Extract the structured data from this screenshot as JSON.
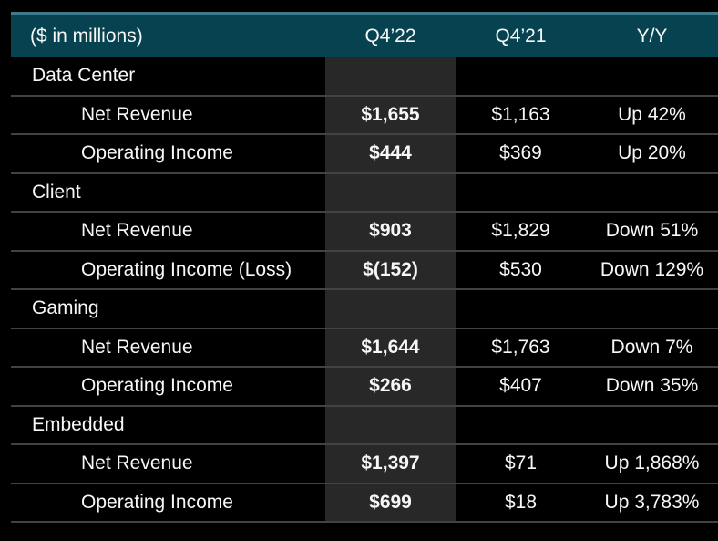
{
  "slide": {
    "header": {
      "unit_label": "($ in millions)",
      "columns": [
        "Q4’22",
        "Q4’21",
        "Y/Y"
      ]
    },
    "rows": [
      {
        "kind": "section",
        "label": "Data Center"
      },
      {
        "kind": "item",
        "label": "Net Revenue",
        "c1": "$1,655",
        "c2": "$1,163",
        "c3": "Up 42%"
      },
      {
        "kind": "item",
        "label": "Operating Income",
        "c1": "$444",
        "c2": "$369",
        "c3": "Up 20%"
      },
      {
        "kind": "section",
        "label": "Client"
      },
      {
        "kind": "item",
        "label": "Net Revenue",
        "c1": "$903",
        "c2": "$1,829",
        "c3": "Down 51%"
      },
      {
        "kind": "item",
        "label": "Operating Income (Loss)",
        "c1": "$(152)",
        "c2": "$530",
        "c3": "Down 129%"
      },
      {
        "kind": "section",
        "label": "Gaming"
      },
      {
        "kind": "item",
        "label": "Net Revenue",
        "c1": "$1,644",
        "c2": "$1,763",
        "c3": "Down 7%"
      },
      {
        "kind": "item",
        "label": "Operating Income",
        "c1": "$266",
        "c2": "$407",
        "c3": "Down 35%"
      },
      {
        "kind": "section",
        "label": "Embedded"
      },
      {
        "kind": "item",
        "label": "Net Revenue",
        "c1": "$1,397",
        "c2": "$71",
        "c3": "Up 1,868%"
      },
      {
        "kind": "item",
        "label": "Operating Income",
        "c1": "$699",
        "c2": "$18",
        "c3": "Up 3,783%"
      }
    ],
    "colors": {
      "background": "#000000",
      "header_bg": "#064250",
      "header_top_border": "#3d7c8c",
      "highlight_column_bg": "#282828",
      "row_divider": "#424242",
      "text": "#f7f7f7"
    }
  }
}
